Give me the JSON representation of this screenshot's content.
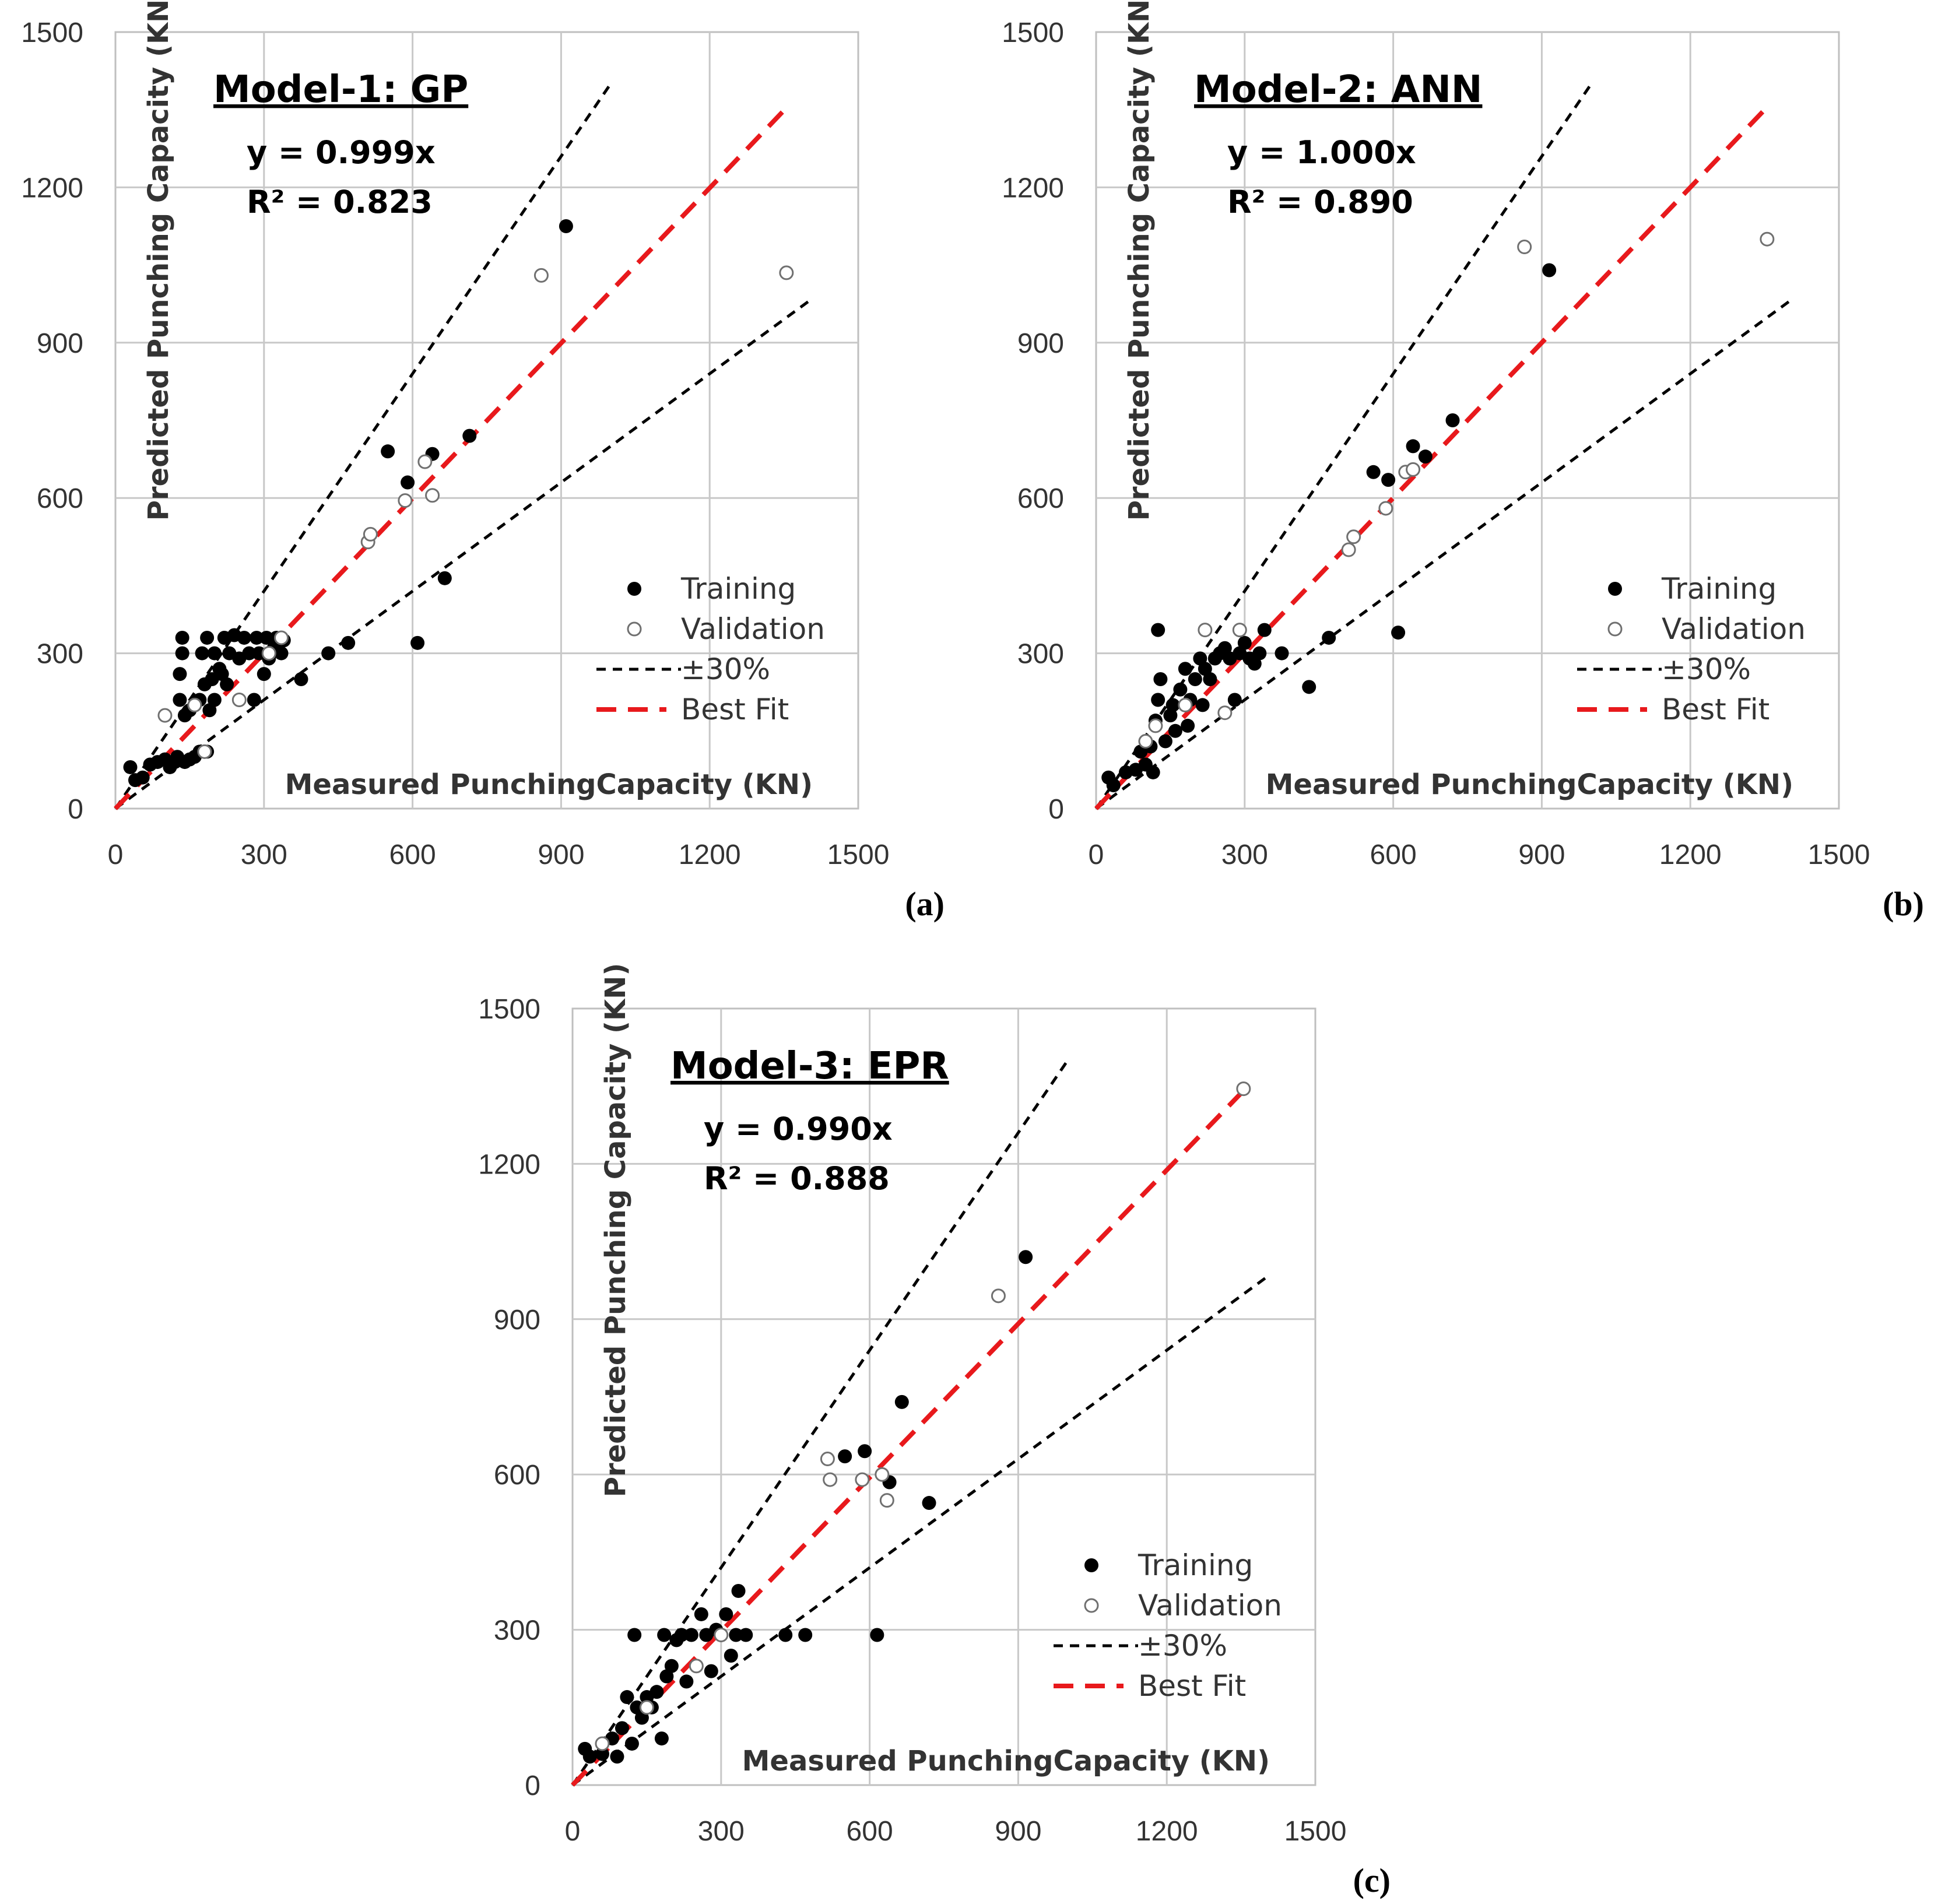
{
  "chart_data": [
    {
      "type": "scatter",
      "panel_letter": "(a)",
      "title": "Model-1: GP",
      "equation": "y = 0.999x",
      "r_squared": "R² = 0.823",
      "best_fit_slope": 0.999,
      "xlabel": "Measured PunchingCapacity  (KN)",
      "ylabel": "Predicted Punching Capacity (KN)",
      "xlim": [
        0,
        1500
      ],
      "ylim": [
        0,
        1500
      ],
      "xticks": [
        "0",
        "300",
        "600",
        "900",
        "1200",
        "1500"
      ],
      "yticks": [
        "0",
        "300",
        "600",
        "900",
        "1200",
        "1500"
      ],
      "grid": true,
      "legend_position": "bottom-right",
      "legend": [
        "Training",
        "Validation",
        "±30%",
        "Best Fit"
      ],
      "series": [
        {
          "name": "Training",
          "marker": "filled",
          "points": [
            [
              30,
              80
            ],
            [
              40,
              55
            ],
            [
              55,
              60
            ],
            [
              70,
              85
            ],
            [
              85,
              90
            ],
            [
              100,
              95
            ],
            [
              110,
              80
            ],
            [
              120,
              90
            ],
            [
              125,
              100
            ],
            [
              130,
              210
            ],
            [
              130,
              260
            ],
            [
              135,
              300
            ],
            [
              135,
              330
            ],
            [
              140,
              180
            ],
            [
              140,
              90
            ],
            [
              150,
              190
            ],
            [
              150,
              95
            ],
            [
              160,
              200
            ],
            [
              160,
              100
            ],
            [
              170,
              210
            ],
            [
              170,
              110
            ],
            [
              175,
              300
            ],
            [
              180,
              240
            ],
            [
              185,
              330
            ],
            [
              185,
              110
            ],
            [
              190,
              190
            ],
            [
              195,
              250
            ],
            [
              200,
              300
            ],
            [
              200,
              210
            ],
            [
              210,
              270
            ],
            [
              215,
              260
            ],
            [
              220,
              330
            ],
            [
              225,
              240
            ],
            [
              230,
              300
            ],
            [
              240,
              335
            ],
            [
              250,
              290
            ],
            [
              260,
              330
            ],
            [
              270,
              300
            ],
            [
              280,
              210
            ],
            [
              285,
              330
            ],
            [
              290,
              300
            ],
            [
              300,
              260
            ],
            [
              305,
              330
            ],
            [
              310,
              290
            ],
            [
              320,
              310
            ],
            [
              325,
              330
            ],
            [
              335,
              300
            ],
            [
              340,
              325
            ],
            [
              375,
              250
            ],
            [
              430,
              300
            ],
            [
              470,
              320
            ],
            [
              550,
              690
            ],
            [
              590,
              630
            ],
            [
              610,
              320
            ],
            [
              640,
              685
            ],
            [
              665,
              445
            ],
            [
              715,
              720
            ],
            [
              910,
              1125
            ]
          ]
        },
        {
          "name": "Validation",
          "marker": "open",
          "points": [
            [
              100,
              180
            ],
            [
              160,
              200
            ],
            [
              180,
              110
            ],
            [
              250,
              210
            ],
            [
              310,
              300
            ],
            [
              335,
              330
            ],
            [
              510,
              515
            ],
            [
              515,
              530
            ],
            [
              585,
              595
            ],
            [
              625,
              670
            ],
            [
              640,
              605
            ],
            [
              860,
              1030
            ],
            [
              1355,
              1035
            ]
          ]
        }
      ]
    },
    {
      "type": "scatter",
      "panel_letter": "(b)",
      "title": "Model-2: ANN",
      "equation": "y = 1.000x",
      "r_squared": "R² = 0.890",
      "best_fit_slope": 1.0,
      "xlabel": "Measured PunchingCapacity  (KN)",
      "ylabel": "Predicted Punching Capacity (KN)",
      "xlim": [
        0,
        1500
      ],
      "ylim": [
        0,
        1500
      ],
      "xticks": [
        "0",
        "300",
        "600",
        "900",
        "1200",
        "1500"
      ],
      "yticks": [
        "0",
        "300",
        "600",
        "900",
        "1200",
        "1500"
      ],
      "grid": true,
      "legend_position": "bottom-right",
      "legend": [
        "Training",
        "Validation",
        "±30%",
        "Best Fit"
      ],
      "series": [
        {
          "name": "Training",
          "marker": "filled",
          "points": [
            [
              25,
              60
            ],
            [
              35,
              45
            ],
            [
              60,
              70
            ],
            [
              80,
              75
            ],
            [
              90,
              110
            ],
            [
              100,
              85
            ],
            [
              110,
              120
            ],
            [
              115,
              70
            ],
            [
              120,
              170
            ],
            [
              125,
              210
            ],
            [
              125,
              345
            ],
            [
              130,
              250
            ],
            [
              140,
              130
            ],
            [
              150,
              180
            ],
            [
              155,
              200
            ],
            [
              160,
              150
            ],
            [
              170,
              230
            ],
            [
              180,
              270
            ],
            [
              185,
              160
            ],
            [
              190,
              210
            ],
            [
              200,
              250
            ],
            [
              210,
              290
            ],
            [
              215,
              200
            ],
            [
              220,
              270
            ],
            [
              230,
              250
            ],
            [
              240,
              290
            ],
            [
              250,
              300
            ],
            [
              260,
              310
            ],
            [
              270,
              290
            ],
            [
              280,
              210
            ],
            [
              290,
              300
            ],
            [
              300,
              320
            ],
            [
              310,
              290
            ],
            [
              320,
              280
            ],
            [
              330,
              300
            ],
            [
              340,
              345
            ],
            [
              375,
              300
            ],
            [
              430,
              235
            ],
            [
              470,
              330
            ],
            [
              560,
              650
            ],
            [
              590,
              635
            ],
            [
              610,
              340
            ],
            [
              640,
              700
            ],
            [
              665,
              680
            ],
            [
              720,
              750
            ],
            [
              915,
              1040
            ]
          ]
        },
        {
          "name": "Validation",
          "marker": "open",
          "points": [
            [
              100,
              130
            ],
            [
              120,
              160
            ],
            [
              180,
              200
            ],
            [
              220,
              345
            ],
            [
              260,
              185
            ],
            [
              290,
              345
            ],
            [
              510,
              500
            ],
            [
              520,
              525
            ],
            [
              585,
              580
            ],
            [
              625,
              650
            ],
            [
              640,
              655
            ],
            [
              865,
              1085
            ],
            [
              1355,
              1100
            ]
          ]
        }
      ]
    },
    {
      "type": "scatter",
      "panel_letter": "(c)",
      "title": "Model-3: EPR",
      "equation": "y = 0.990x",
      "r_squared": "R² = 0.888",
      "best_fit_slope": 0.99,
      "xlabel": "Measured PunchingCapacity  (KN)",
      "ylabel": "Predicted Punching Capacity (KN)",
      "xlim": [
        0,
        1500
      ],
      "ylim": [
        0,
        1500
      ],
      "xticks": [
        "0",
        "300",
        "600",
        "900",
        "1200",
        "1500"
      ],
      "yticks": [
        "0",
        "300",
        "600",
        "900",
        "1200",
        "1500"
      ],
      "grid": true,
      "legend_position": "bottom-right",
      "legend": [
        "Training",
        "Validation",
        "±30%",
        "Best Fit"
      ],
      "series": [
        {
          "name": "Training",
          "marker": "filled",
          "points": [
            [
              25,
              70
            ],
            [
              35,
              55
            ],
            [
              60,
              60
            ],
            [
              80,
              90
            ],
            [
              90,
              55
            ],
            [
              100,
              110
            ],
            [
              110,
              170
            ],
            [
              120,
              80
            ],
            [
              125,
              290
            ],
            [
              130,
              150
            ],
            [
              140,
              130
            ],
            [
              150,
              170
            ],
            [
              160,
              150
            ],
            [
              170,
              180
            ],
            [
              180,
              90
            ],
            [
              185,
              290
            ],
            [
              190,
              210
            ],
            [
              200,
              230
            ],
            [
              210,
              280
            ],
            [
              220,
              290
            ],
            [
              230,
              200
            ],
            [
              240,
              290
            ],
            [
              250,
              230
            ],
            [
              260,
              330
            ],
            [
              270,
              290
            ],
            [
              280,
              220
            ],
            [
              290,
              300
            ],
            [
              300,
              290
            ],
            [
              310,
              330
            ],
            [
              320,
              250
            ],
            [
              330,
              290
            ],
            [
              335,
              375
            ],
            [
              350,
              290
            ],
            [
              430,
              290
            ],
            [
              470,
              290
            ],
            [
              550,
              635
            ],
            [
              590,
              645
            ],
            [
              615,
              290
            ],
            [
              640,
              585
            ],
            [
              665,
              740
            ],
            [
              720,
              545
            ],
            [
              915,
              1020
            ]
          ]
        },
        {
          "name": "Validation",
          "marker": "open",
          "points": [
            [
              60,
              80
            ],
            [
              150,
              150
            ],
            [
              250,
              230
            ],
            [
              300,
              290
            ],
            [
              515,
              630
            ],
            [
              520,
              590
            ],
            [
              585,
              590
            ],
            [
              625,
              600
            ],
            [
              635,
              550
            ],
            [
              860,
              945
            ],
            [
              1355,
              1345
            ]
          ]
        }
      ]
    }
  ]
}
